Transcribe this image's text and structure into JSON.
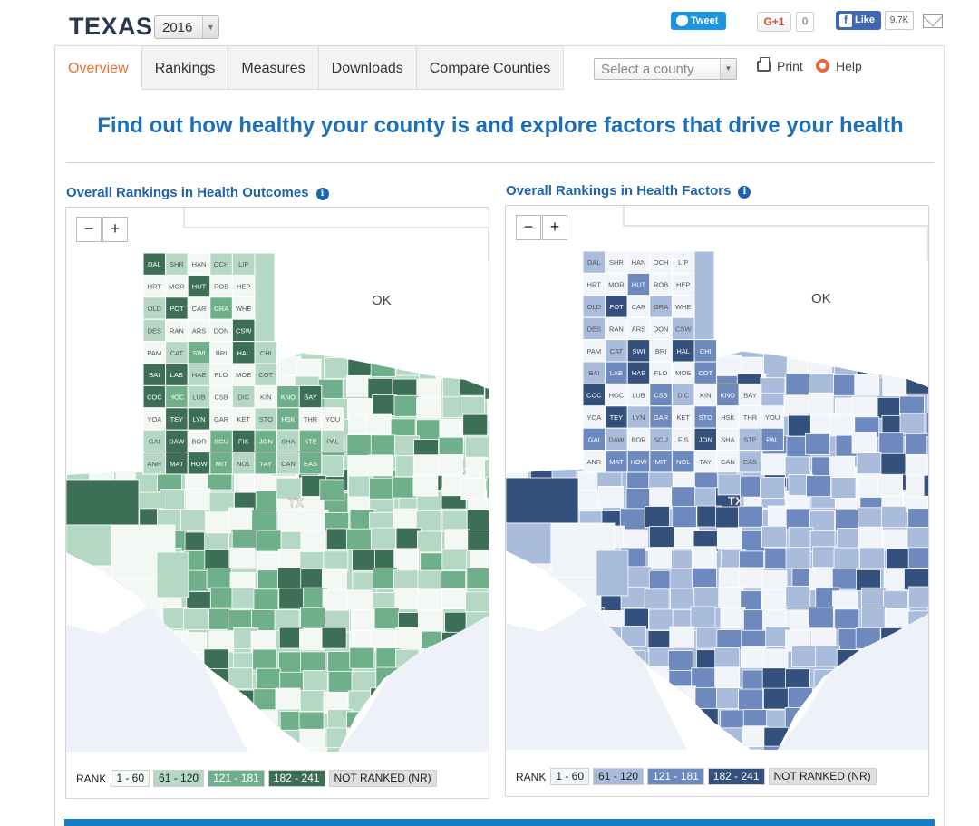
{
  "header": {
    "state": "TEXAS",
    "year": "2016",
    "tweet": "Tweet",
    "gplus": "G+1",
    "gplus_count": "0",
    "fb_like": "Like",
    "fb_count": "9.7K"
  },
  "tabs": [
    {
      "label": "Overview"
    },
    {
      "label": "Rankings"
    },
    {
      "label": "Measures"
    },
    {
      "label": "Downloads"
    },
    {
      "label": "Compare Counties"
    }
  ],
  "county_select": {
    "placeholder": "Select a county"
  },
  "actions": {
    "print": "Print",
    "help": "Help"
  },
  "headline": "Find out how healthy your county is and explore factors that drive your health",
  "maps": [
    {
      "title": "Overall Rankings in Health Outcomes",
      "theme": "green",
      "colors": {
        "q1": "#f4f8f5",
        "q2": "#b5d8c4",
        "q3": "#6fb08b",
        "q4": "#3d6f56",
        "nr": "#dfdfdf",
        "line": "#ffffff"
      },
      "legend": {
        "label": "RANK",
        "q1": "1 - 60",
        "q2": "61 - 120",
        "q3": "121 - 181",
        "q4": "182 - 241",
        "nr": "NOT RANKED (NR)"
      }
    },
    {
      "title": "Overall Rankings in Health Factors",
      "theme": "blue",
      "colors": {
        "q1": "#f1f4f8",
        "q2": "#a9bcdb",
        "q3": "#6e89bd",
        "q4": "#34507c",
        "nr": "#dfdfdf",
        "line": "#ffffff"
      },
      "legend": {
        "label": "RANK",
        "q1": "1 - 60",
        "q2": "61 - 120",
        "q3": "121 - 181",
        "q4": "182 - 241",
        "nr": "NOT RANKED (NR)"
      }
    }
  ],
  "map_labels": {
    "neighbor": "OK",
    "state_abbr": "TX"
  },
  "counties": [
    {
      "n": "DAL",
      "g": 4,
      "b": 2
    },
    {
      "n": "SHR",
      "g": 2,
      "b": 1
    },
    {
      "n": "HAN",
      "g": 1,
      "b": 1
    },
    {
      "n": "OCH",
      "g": 2,
      "b": 1
    },
    {
      "n": "LIP",
      "g": 2,
      "b": 1
    },
    {
      "n": "HRT",
      "g": 1,
      "b": 1
    },
    {
      "n": "MOR",
      "g": 1,
      "b": 1
    },
    {
      "n": "HUT",
      "g": 4,
      "b": 3
    },
    {
      "n": "ROB",
      "g": 1,
      "b": 1
    },
    {
      "n": "HEP",
      "g": 1,
      "b": 1
    },
    {
      "n": "OLD",
      "g": 2,
      "b": 2
    },
    {
      "n": "POT",
      "g": 4,
      "b": 4
    },
    {
      "n": "CAR",
      "g": 1,
      "b": 1
    },
    {
      "n": "GRA",
      "g": 3,
      "b": 2
    },
    {
      "n": "WHE",
      "g": 1,
      "b": 1
    },
    {
      "n": "DES",
      "g": 2,
      "b": 2
    },
    {
      "n": "RAN",
      "g": 1,
      "b": 1
    },
    {
      "n": "ARS",
      "g": 1,
      "b": 1
    },
    {
      "n": "DON",
      "g": 1,
      "b": 1
    },
    {
      "n": "CSW",
      "g": 4,
      "b": 2
    },
    {
      "n": "PAM",
      "g": 1,
      "b": 1
    },
    {
      "n": "CAT",
      "g": 2,
      "b": 2
    },
    {
      "n": "SWI",
      "g": 3,
      "b": 4
    },
    {
      "n": "BRI",
      "g": 1,
      "b": 1
    },
    {
      "n": "HAL",
      "g": 4,
      "b": 4
    },
    {
      "n": "CHI",
      "g": 2,
      "b": 3
    },
    {
      "n": "BAI",
      "g": 4,
      "b": 2
    },
    {
      "n": "LAB",
      "g": 4,
      "b": 3
    },
    {
      "n": "HAE",
      "g": 2,
      "b": 4
    },
    {
      "n": "FLO",
      "g": 1,
      "b": 1
    },
    {
      "n": "MOE",
      "g": 1,
      "b": 1
    },
    {
      "n": "COT",
      "g": 2,
      "b": 3
    },
    {
      "n": "COC",
      "g": 4,
      "b": 4
    },
    {
      "n": "HOC",
      "g": 3,
      "b": 1
    },
    {
      "n": "LUB",
      "g": 2,
      "b": 1
    },
    {
      "n": "CSB",
      "g": 1,
      "b": 3
    },
    {
      "n": "DIC",
      "g": 2,
      "b": 2
    },
    {
      "n": "KIN",
      "g": 1,
      "b": 1
    },
    {
      "n": "KNO",
      "g": 3,
      "b": 3
    },
    {
      "n": "BAY",
      "g": 4,
      "b": 1
    },
    {
      "n": "YOA",
      "g": 1,
      "b": 1
    },
    {
      "n": "TEY",
      "g": 4,
      "b": 4
    },
    {
      "n": "LYN",
      "g": 4,
      "b": 2
    },
    {
      "n": "GAR",
      "g": 1,
      "b": 3
    },
    {
      "n": "KET",
      "g": 1,
      "b": 1
    },
    {
      "n": "STO",
      "g": 2,
      "b": 3
    },
    {
      "n": "HSK",
      "g": 3,
      "b": 1
    },
    {
      "n": "THR",
      "g": 1,
      "b": 1
    },
    {
      "n": "YOU",
      "g": 1,
      "b": 1
    },
    {
      "n": "GAI",
      "g": 2,
      "b": 3
    },
    {
      "n": "DAW",
      "g": 4,
      "b": 2
    },
    {
      "n": "BOR",
      "g": 1,
      "b": 1
    },
    {
      "n": "SCU",
      "g": 3,
      "b": 2
    },
    {
      "n": "FIS",
      "g": 4,
      "b": 1
    },
    {
      "n": "JON",
      "g": 3,
      "b": 4
    },
    {
      "n": "SHA",
      "g": 2,
      "b": 1
    },
    {
      "n": "STE",
      "g": 3,
      "b": 2
    },
    {
      "n": "PAL",
      "g": 2,
      "b": 3
    },
    {
      "n": "ANR",
      "g": 2,
      "b": 1
    },
    {
      "n": "MAT",
      "g": 4,
      "b": 3
    },
    {
      "n": "HOW",
      "g": 4,
      "b": 3
    },
    {
      "n": "MIT",
      "g": 3,
      "b": 3
    },
    {
      "n": "NOL",
      "g": 2,
      "b": 3
    },
    {
      "n": "TAY",
      "g": 3,
      "b": 1
    },
    {
      "n": "CAN",
      "g": 2,
      "b": 1
    },
    {
      "n": "EAS",
      "g": 3,
      "b": 2
    }
  ]
}
